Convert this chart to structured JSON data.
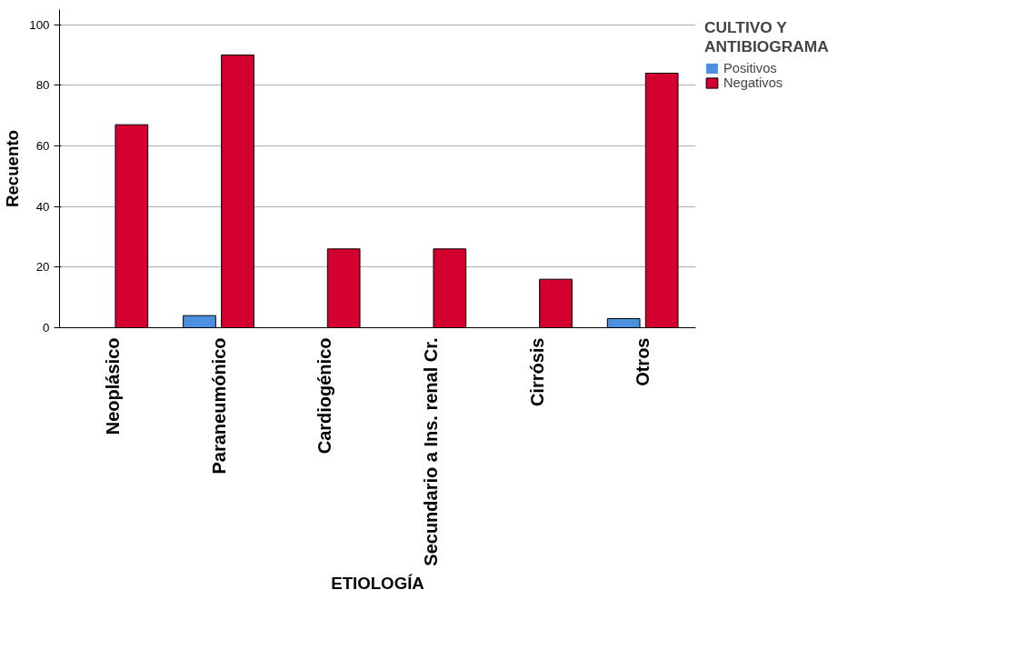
{
  "chart_data": {
    "type": "bar",
    "xlabel": "ETIOLOGÍA",
    "ylabel": "Recuento",
    "legend_title": "CULTIVO Y ANTIBIOGRAMA",
    "categories": [
      "Neoplásico",
      "Paraneumónico",
      "Cardiogénico",
      "Secundario a Ins. renal Cr.",
      "Cirrósis",
      "Otros"
    ],
    "series": [
      {
        "name": "Positivos",
        "color": "#4a8fe0",
        "values": [
          0,
          4,
          0,
          0,
          0,
          3
        ]
      },
      {
        "name": "Negativos",
        "color": "#d3002f",
        "values": [
          67,
          90,
          26,
          26,
          16,
          84
        ]
      }
    ],
    "ylim": [
      0,
      105
    ],
    "yticks": [
      0,
      20,
      40,
      60,
      80,
      100
    ],
    "grid": "y",
    "legend": "top right"
  }
}
